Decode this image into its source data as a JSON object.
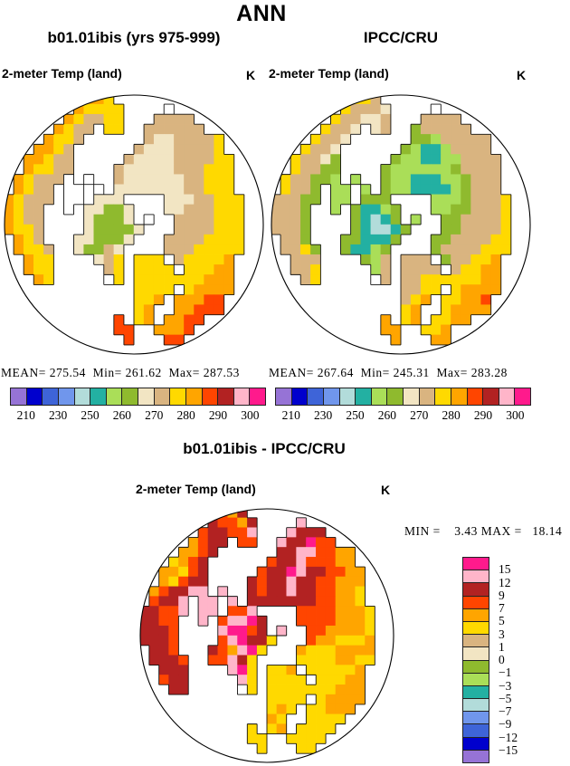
{
  "title": "ANN",
  "panels": {
    "model": {
      "title": "b01.01ibis (yrs 975-999)",
      "var_label": "2-meter Temp (land)",
      "units": "K",
      "stats": "MEAN= 275.54  Min= 261.62  Max= 287.53"
    },
    "obs": {
      "title": "IPCC/CRU",
      "var_label": "2-meter Temp (land)",
      "units": "K",
      "stats": "MEAN= 267.64  Min= 245.31  Max= 283.28"
    },
    "diff": {
      "title": "b01.01ibis - IPCC/CRU",
      "var_label": "2-meter Temp (land)",
      "units": "K",
      "stats": "MIN =    3.43 MAX =   18.14"
    }
  },
  "colorbar": {
    "palette": [
      "#9673d6",
      "#0000cd",
      "#3e64d8",
      "#7096ec",
      "#b2dcda",
      "#23b0a2",
      "#aade58",
      "#8fba2e",
      "#f2e5c3",
      "#d9b480",
      "#ffd900",
      "#ffa500",
      "#ff4500",
      "#b22222",
      "#ffb5c9",
      "#ff1a8c"
    ],
    "h_labels": [
      "210",
      "230",
      "250",
      "260",
      "270",
      "280",
      "290",
      "300"
    ],
    "v_labels": [
      "15",
      "12",
      "9",
      "7",
      "5",
      "3",
      "1",
      "0",
      "−1",
      "−3",
      "−5",
      "−7",
      "−9",
      "−12",
      "−15"
    ]
  },
  "chart_data": [
    {
      "type": "heatmap",
      "title": "b01.01ibis (yrs 975-999)",
      "variable": "2-meter Temp (land)",
      "units": "K",
      "projection": "north polar stereographic",
      "mean": 275.54,
      "min": 261.62,
      "max": 287.53,
      "scale_edges": [
        210,
        220,
        230,
        240,
        250,
        255,
        260,
        265,
        270,
        275,
        280,
        285,
        290,
        295,
        300
      ],
      "legend_labels": [
        "210",
        "230",
        "250",
        "260",
        "270",
        "280",
        "290",
        "300"
      ]
    },
    {
      "type": "heatmap",
      "title": "IPCC/CRU",
      "variable": "2-meter Temp (land)",
      "units": "K",
      "projection": "north polar stereographic",
      "mean": 267.64,
      "min": 245.31,
      "max": 283.28,
      "scale_edges": [
        210,
        220,
        230,
        240,
        250,
        255,
        260,
        265,
        270,
        275,
        280,
        285,
        290,
        295,
        300
      ],
      "legend_labels": [
        "210",
        "230",
        "250",
        "260",
        "270",
        "280",
        "290",
        "300"
      ]
    },
    {
      "type": "heatmap",
      "title": "b01.01ibis - IPCC/CRU",
      "variable": "2-meter Temp (land)",
      "units": "K",
      "projection": "north polar stereographic",
      "min": 3.43,
      "max": 18.14,
      "scale_ticks": [
        15,
        12,
        9,
        7,
        5,
        3,
        1,
        0,
        -1,
        -3,
        -5,
        -7,
        -9,
        -12,
        -15
      ]
    }
  ],
  "maps": {
    "legend_note": "grids: . = ocean/no data, w = white land (outlined), a-p = palette colors 0-15",
    "model_grid": [
      "........llk...............",
      ".......lkkkk....w.........",
      "......lkjjkk...jjjj.......",
      ".....lkjj.kk..jjjjjj......",
      "....lkkj......jiijjjjk....",
      "...llkj......jiiijjjjk....",
      "..llkjj.....jiiiijjjjkk...",
      "..lkkjj....jiiiiijjjkkk...",
      ".lkjjjw.w..jiiiiiijjkkk...",
      ".lkjj.ww.w.iiiiiiijjkkk...",
      "lkjjj.ww.iii....iiijjkkk..",
      "lkjj..w.iihhi...iijjjkkk..",
      "lkjj....ihhhi.w..jjjjkkk..",
      "lkkj....ihhhhi...jjjjkkk..",
      ".lkj...iihhhi...jjjjkkkk..",
      ".lkkj..ihhji....jjjkkkkk..",
      "..lkk....ijk.kkk.jkkkkl...",
      "..lkk.....jk.kkkk.kkkll...",
      "...lk.....wk.kkkkkkklll...",
      ".............kkkk.kllll...",
      ".............kkl.lllmm....",
      ".............kl..llmmm....",
      "...........m.kl.llmm......",
      "...........mm..lllm.......",
      "............m...mm........",
      ".........................."
    ],
    "obs_grid": [
      "........kkj...............",
      ".......kjjji....w.........",
      "......kjjiij...jjjj.......",
      ".....kjji.ij..hjjjjj......",
      "....kjji......hhgjjjjj....",
      "...kjji......hgffgjjjj....",
      "..kjjih.....hggffggjjjj...",
      "..kjjhh....hgggggghjjjj...",
      ".kjjhhg.g..hggfffgghjjj...",
      ".kjjh.gg.g.hggffffghjjj...",
      "jjjhh.gg.hhh....ggghjjjk..",
      "jjjh..g.hffgh...gghhjjjk..",
      "jjjh....hfefh.g..hhjjjjk..",
      "jjjh....hfeefh...hhjjjjk..",
      ".jjh...hhfffh...hhjjjjkk..",
      ".jjkh..hffgh....hjjjjkkk..",
      "..jjj....hgj.jjj.hjjkkl...",
      "..jjk.....gj.jjjj.jkkll...",
      "...jk.....wj.jjkkkkkkll...",
      ".............jjkk.kllll...",
      ".............jkl.kkllm....",
      ".............kl..kllll....",
      "...........l.kl.kkll......",
      "...........ll..kkl........",
      "............l...ll........",
      ".........................."
    ],
    "diff_grid": [
      "........mln...............",
      ".......nmmln....o.........",
      "......mnnmmo...onnn.......",
      ".....lmnn.mm..onnpmm......",
      "....llmn......nnoommll....",
      "...klmn......mnnommmll....",
      "..llkmn.....mnnponnmmll...",
      "..lkmnn....nmnnonnmmlll...",
      ".lmnnoo.o..nmnnonnmmllk...",
      ".mnno.oo.o.nnnnnnnmmllk...",
      "nnmmo.oo.mmo....mmmmlllk..",
      "nnmm..o.moopn...mmmmlllk..",
      "nnnm....oppmn.o..mmllllk..",
      "nnnm....mopnnk...mllkkkl..",
      ".nnm...nmlopk...lkkkllll..",
      ".nnnm..mmonk....kkkkllkk..",
      "..nnn....opk.kkl.kkkkkl...",
      "..mnn.....ok.kkkk.kkkll...",
      "...nn.....wk.kkkkkkklll...",
      ".............kkkk.kllll...",
      ".............klk.kklll....",
      ".............lk..kkkk.....",
      "...........k.kl.kkkk......",
      "...........kk..kkkk.......",
      "............k...kk........",
      ".........................."
    ]
  }
}
